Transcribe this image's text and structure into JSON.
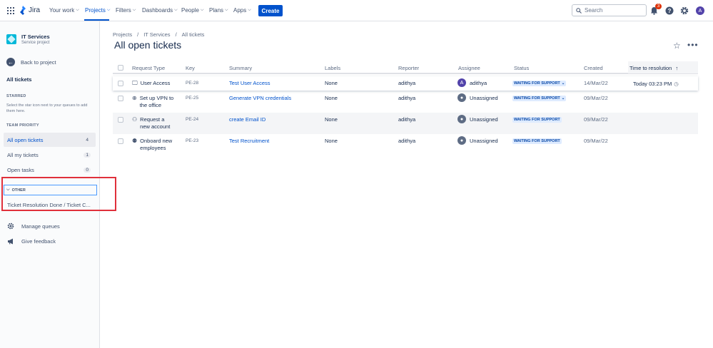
{
  "topnav": {
    "app_name": "Jira",
    "items": [
      {
        "label": "Your work",
        "dropdown": true
      },
      {
        "label": "Projects",
        "dropdown": true,
        "active": true
      },
      {
        "label": "Filters",
        "dropdown": true
      },
      {
        "label": "Dashboards",
        "dropdown": true
      },
      {
        "label": "People",
        "dropdown": true
      },
      {
        "label": "Plans",
        "dropdown": true
      },
      {
        "label": "Apps",
        "dropdown": true
      }
    ],
    "create_label": "Create",
    "search_placeholder": "Search",
    "notification_count": "3",
    "avatar_initial": "A",
    "colors": {
      "brand": "#0052cc",
      "badge": "#de350b",
      "avatar": "#5243aa"
    }
  },
  "sidebar": {
    "project_name": "IT Services",
    "project_type": "Service project",
    "back_label": "Back to project",
    "heading": "All tickets",
    "starred_title": "STARRED",
    "starred_note": "Select the star icon next to your queues to add them here.",
    "team_priority_title": "TEAM PRIORITY",
    "queues": [
      {
        "label": "All open tickets",
        "count": "4",
        "selected": true
      },
      {
        "label": "All my tickets",
        "count": "1"
      },
      {
        "label": "Open tasks",
        "count": "0"
      }
    ],
    "other_title": "OTHER",
    "other_item": "Ticket Resolution Done / Ticket C...",
    "manage_label": "Manage queues",
    "feedback_label": "Give feedback"
  },
  "main": {
    "breadcrumbs": [
      "Projects",
      "IT Services",
      "All tickets"
    ],
    "title": "All open tickets",
    "columns": {
      "request_type": "Request Type",
      "key": "Key",
      "summary": "Summary",
      "labels": "Labels",
      "reporter": "Reporter",
      "assignee": "Assignee",
      "status": "Status",
      "created": "Created",
      "time_to_resolution": "Time to resolution"
    },
    "rows": [
      {
        "request_type": "User Access",
        "icon": "monitor-icon",
        "key": "PE-28",
        "summary": "Test User Access",
        "labels": "None",
        "reporter": "adithya",
        "assignee": "adithya",
        "assignee_initial": "A",
        "status": "WAITING FOR SUPPORT",
        "status_dropdown": true,
        "created": "14/Mar/22",
        "ttr": "Today 03:23 PM"
      },
      {
        "request_type": "Set up VPN to the office",
        "icon": "vpn-icon",
        "key": "PE-25",
        "summary": "Generate VPN credentials",
        "labels": "None",
        "reporter": "adithya",
        "assignee": "Unassigned",
        "status": "WAITING FOR SUPPORT",
        "status_dropdown": true,
        "created": "09/Mar/22",
        "ttr": ""
      },
      {
        "request_type": "Request a new account",
        "icon": "add-account-icon",
        "key": "PE-24",
        "summary": "create Email ID",
        "labels": "None",
        "reporter": "adithya",
        "assignee": "Unassigned",
        "status": "WAITING FOR SUPPORT",
        "status_dropdown": false,
        "created": "09/Mar/22",
        "ttr": ""
      },
      {
        "request_type": "Onboard new employees",
        "icon": "people-icon",
        "key": "PE-23",
        "summary": "Test Recruitment",
        "labels": "None",
        "reporter": "adithya",
        "assignee": "Unassigned",
        "status": "WAITING FOR SUPPORT",
        "status_dropdown": false,
        "created": "09/Mar/22",
        "ttr": ""
      }
    ]
  }
}
